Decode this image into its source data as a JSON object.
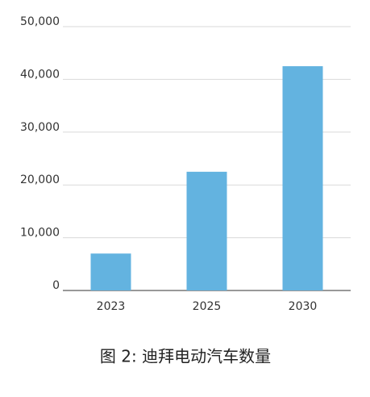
{
  "chart_data": {
    "type": "bar",
    "title": "图 2: 迪拜电动汽车数量",
    "categories": [
      "2023",
      "2025",
      "2030"
    ],
    "values": [
      7000,
      22500,
      42500
    ],
    "color": "#63b3e0",
    "ylim": [
      0,
      50000
    ],
    "yticks": [
      0,
      {
        "value": 10000,
        "label": "10,000"
      },
      {
        "value": 20000,
        "label": "20,000"
      },
      {
        "value": 30000,
        "label": "30,000"
      },
      {
        "value": 40000,
        "label": "40,000"
      },
      {
        "value": 50000,
        "label": "50,000"
      }
    ],
    "grid": true
  }
}
